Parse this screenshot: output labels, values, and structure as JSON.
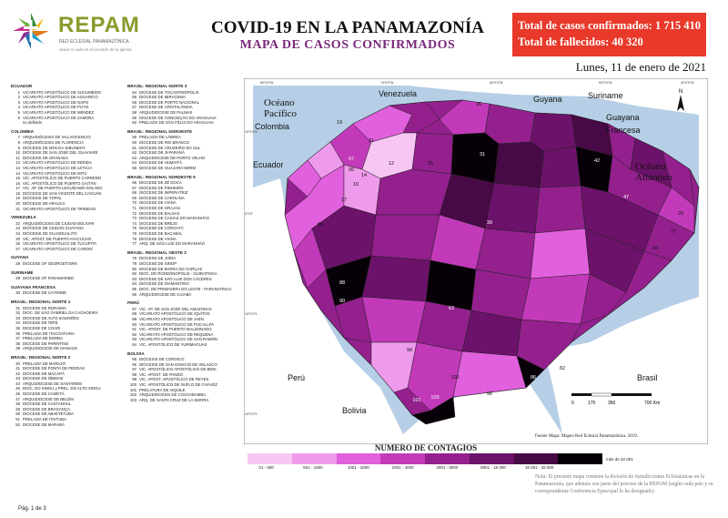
{
  "header": {
    "logo_name": "REPAM",
    "logo_sub": "RED ECLESIAL PANAMAZÓNICA",
    "logo_motto": "Jesús sí vida en el corazón de la Iglesia",
    "title": "COVID-19 EN LA PANAMAZONÍA",
    "subtitle": "MAPA DE CASOS CONFIRMADOS",
    "confirmed_label": "Total de casos confirmados:",
    "confirmed_value": "1 715 410",
    "deaths_label": "Total de fallecidos:",
    "deaths_value": "40 320",
    "date": "Lunes, 11 de enero de 2021"
  },
  "index_col1": [
    {
      "heading": "ECUADOR",
      "items": [
        [
          "1",
          "VICARIATO APOSTÓLICO DE SUCUMBÍOS"
        ],
        [
          "2",
          "VICARIATO APOSTÓLICO DE AGUARICO"
        ],
        [
          "3",
          "VICARIATO APOSTÓLICO DE NAPO"
        ],
        [
          "4",
          "VICARIATO APOSTÓLICO DE PUYO"
        ],
        [
          "5",
          "VICARIATO APOSTÓLICO DE MÉNDEZ"
        ],
        [
          "6",
          "VICARIATO APOSTÓLICO DE ZAMORA"
        ],
        [
          "",
          "no definido"
        ]
      ]
    },
    {
      "heading": "COLOMBIA",
      "items": [
        [
          "7",
          "ARQUIDIÓCESIS DE VILLAVICENCIO"
        ],
        [
          "8",
          "ARQUIDIÓCESIS DE FLORENCIA"
        ],
        [
          "9",
          "DIÓCESIS DE MOCOA-SIBUNDOY"
        ],
        [
          "10",
          "DIÓCESIS DE SAN JOSÉ DEL GUAVIARE"
        ],
        [
          "11",
          "DIÓCESIS DE GRANADA"
        ],
        [
          "12",
          "VICARIATO APOSTÓLICO DE INÍRIDA"
        ],
        [
          "13",
          "VICARIATO APOSTÓLICO DE LETICIA"
        ],
        [
          "14",
          "VICARIATO APOSTÓLICO DE MITÚ"
        ],
        [
          "15",
          "VIC. APOSTÓLICO DE PUERTO CARREÑO"
        ],
        [
          "16",
          "VIC. APOSTÓLICO DE PUERTO GAITÁN"
        ],
        [
          "17",
          "VIC. AP. DE PUERTO LEGUÍZAMO-SOLANO"
        ],
        [
          "18",
          "DIÓCESIS DE SAN VICENTE DEL CAGUÁN"
        ],
        [
          "19",
          "DIÓCESIS DE YOPAL"
        ],
        [
          "20",
          "DIÓCESIS DE ARAUCA"
        ],
        [
          "21",
          "VICARIATO APOSTÓLICO DE TRINIDAD"
        ]
      ]
    },
    {
      "heading": "VENEZUELA",
      "items": [
        [
          "22",
          "ARQUIDIÓCESIS DE CIUDAD BOLÍVAR"
        ],
        [
          "23",
          "DIÓCESIS DE CIUDAD GUAYANA"
        ],
        [
          "24",
          "DIÓCESIS DE GUASDUALITO"
        ],
        [
          "25",
          "VIC. APOST. DE PUERTO AYACUCHO"
        ],
        [
          "26",
          "VICARIATO APOSTÓLICO DE TUCUPITA"
        ],
        [
          "27",
          "VICARIATO APOSTÓLICO DE CARONÍ"
        ]
      ]
    },
    {
      "heading": "GUYANA",
      "items": [
        [
          "28",
          "DIOCESE OF GEORGETOWN"
        ]
      ]
    },
    {
      "heading": "SURINAME",
      "items": [
        [
          "29",
          "DIOCESE OF PARAMARIBO"
        ]
      ]
    },
    {
      "heading": "GUAYANA FRANCESA",
      "items": [
        [
          "30",
          "DIOCESE DE CAYENNE"
        ]
      ]
    },
    {
      "heading": "BRASIL: REGIONAL NORTE 1",
      "items": [
        [
          "31",
          "DIOCESE DE RORAIMA"
        ],
        [
          "32",
          "DIOC. DE SÃO GABRIEL DA CACHOEIRA"
        ],
        [
          "33",
          "DIOCESE DE ALTO SOLIMÕES"
        ],
        [
          "34",
          "DIOCESE DE TEFÉ"
        ],
        [
          "35",
          "DIOCESE DE COARI"
        ],
        [
          "36",
          "PRELAZIA DE ITACOATIARA"
        ],
        [
          "37",
          "PRELAZIA DE BORBA"
        ],
        [
          "38",
          "DIOCESE DE PARINTINS"
        ],
        [
          "39",
          "ARQUIDIOCESE DE MANAUS"
        ]
      ]
    },
    {
      "heading": "BRASIL: REGIONAL NORTE 2",
      "items": [
        [
          "40",
          "PRELAZIA DE MARAJÓ"
        ],
        [
          "41",
          "DIOCESE DE PONTA DE PEDRAS"
        ],
        [
          "42",
          "DIOCESE DE MACAPÁ"
        ],
        [
          "43",
          "DIOCESE DE ÓBIDOS"
        ],
        [
          "44",
          "ARQUIDIOCESE DE SANTARÉM"
        ],
        [
          "45",
          "DIOC. DO XINGU y PREL. DO ALTO XINGU"
        ],
        [
          "46",
          "DIOCESE DE CAMETÁ"
        ],
        [
          "47",
          "ARQUIDIOCESE DE BELÉM"
        ],
        [
          "48",
          "DIOCESE DE CASTANHAL"
        ],
        [
          "49",
          "DIOCESE DE BRAGANÇA"
        ],
        [
          "50",
          "DIOCESE DE ABAETETUBA"
        ],
        [
          "51",
          "PRELAZIA DE ITAITUBA"
        ],
        [
          "52",
          "DIOCESE DE MARABÁ"
        ]
      ]
    }
  ],
  "index_col2": [
    {
      "heading": "BRASIL: REGIONAL NORTE 3",
      "items": [
        [
          "54",
          "DIOCESE DE TOCANTINÓPOLIS"
        ],
        [
          "55",
          "DIOCESE DE MIRACEMA"
        ],
        [
          "56",
          "DIOCESE DE PORTO NACIONAL"
        ],
        [
          "57",
          "DIOCESE DE CRISTALÂNDIA"
        ],
        [
          "58",
          "ARQUIDIOCESE DE PALMAS"
        ],
        [
          "59",
          "DIOCESE DE CONCEIÇÃO DO ARAGUAIA"
        ],
        [
          "60",
          "PRELAZIA DE SÃO FÉLIX DO ARAGUAIA"
        ]
      ]
    },
    {
      "heading": "BRASIL: REGIONAL NOROESTE",
      "items": [
        [
          "58",
          "PRELAZIA DE LÁBREA"
        ],
        [
          "60",
          "DIOCESE DE RIO BRANCO"
        ],
        [
          "61",
          "DIOCESE DE CRUZEIRO DO SUL"
        ],
        [
          "62",
          "DIOCESE DE JI-PARANÁ"
        ],
        [
          "63",
          "ARQUIDIOCESE DE PORTO VELHO"
        ],
        [
          "64",
          "DIOCESE DE HUMAITÁ"
        ],
        [
          "65",
          "DIOCESE DE GUAJARÁ-MIRIM"
        ]
      ]
    },
    {
      "heading": "BRASIL: REGIONAL NORDESTE 5",
      "items": [
        [
          "66",
          "DIOCESE DE ZÉ DOCA"
        ],
        [
          "67",
          "DIOCESE DE PINHEIRO"
        ],
        [
          "68",
          "DIOCESE DE IMPERATRIZ"
        ],
        [
          "69",
          "DIOCESE DE CAROLINA"
        ],
        [
          "70",
          "DIOCESE DE VIANA"
        ],
        [
          "71",
          "DIOCESE DE GRAJAÚ"
        ],
        [
          "72",
          "DIOCESE DE BALSAS"
        ],
        [
          "73",
          "DIOCESE DE CAXIAS DO MARANHÃO"
        ],
        [
          "74",
          "DIOCESE DE BREJO"
        ],
        [
          "75",
          "DIOCESE DE COROATÁ"
        ],
        [
          "76",
          "DIOCESE DE BACABAL"
        ],
        [
          "76",
          "DIOCESE DE VIANA"
        ],
        [
          "77",
          "ARQ. DE SÃO LUIZ DO MARANHÃO"
        ]
      ]
    },
    {
      "heading": "BRASIL: REGIONAL OESTE 2",
      "items": [
        [
          "78",
          "DIOCESE DE JUÍNA"
        ],
        [
          "79",
          "DIOCESE DE SINOP"
        ],
        [
          "80",
          "DIOCESE DE BARRA DO GARÇAS"
        ],
        [
          "82",
          "DIOC. DE RONDONÓPOLIS - GUIRATINGA"
        ],
        [
          "83",
          "DIOCESE DE SÃO LUIZ DOS CÁCERES"
        ],
        [
          "84",
          "DIOCESE DE DIAMANTINO"
        ],
        [
          "85",
          "DIOC. DE PRIMAVERA DO LESTE - PARANATINGA"
        ],
        [
          "86",
          "ARQUIDIOCESE DE CUIABÁ"
        ]
      ]
    },
    {
      "heading": "PERÚ",
      "items": [
        [
          "87",
          "VIC. AP. DE SAN JOSÉ DEL AMAZONAS"
        ],
        [
          "88",
          "VICARIATO APOSTÓLICO DE IQUITOS"
        ],
        [
          "89",
          "VICARIATO APOSTÓLICO DE JAÉN"
        ],
        [
          "90",
          "VICARIATO APOSTÓLICO DE PUCALLPA"
        ],
        [
          "91",
          "VIC. APOST. DE PUERTO MALDONADO"
        ],
        [
          "92",
          "VICARIATO APOSTÓLICO DE REQUENA"
        ],
        [
          "93",
          "VICARIATO APOSTÓLICO DE SAN RAMÓN"
        ],
        [
          "94",
          "VIC. APOSTÓLICO DE YURIMAGUAS"
        ]
      ]
    },
    {
      "heading": "BOLIVIA",
      "items": [
        [
          "95",
          "DIÓCESIS DE COROICO"
        ],
        [
          "96",
          "DIÓCESIS DE SAN IGNACIO DE VELASCO"
        ],
        [
          "97",
          "VIC. APOSTÓLICO APOSTÓLICO DE BENI"
        ],
        [
          "98",
          "VIC. APOST. DE PANDO"
        ],
        [
          "99",
          "VIC. APOST. APOSTÓLICO DE REYES"
        ],
        [
          "100",
          "VIC. APOSTÓLICO DE ÑUFLO DE CHÁVEZ"
        ],
        [
          "101",
          "PRELATURA DE AIQUILE"
        ],
        [
          "102",
          "ARQUIDIÓCESIS DE COCHABAMBA"
        ],
        [
          "103",
          "ARQ. DE SANTA CRUZ DE LA SIERRA"
        ]
      ]
    }
  ],
  "page_number": "Pág. 1 de 3",
  "map": {
    "ocean_labels": [
      {
        "text": "Océano",
        "text2": "Pacífico"
      },
      {
        "text": "Océano",
        "text2": "Atlántico"
      }
    ],
    "country_labels": [
      "Venezuela",
      "Colombia",
      "Guyana",
      "Suriname",
      "Guayana",
      "Francesa",
      "Ecuador",
      "Perú",
      "Bolivia",
      "Brasil"
    ],
    "region_numbers": [
      "19",
      "21",
      "26",
      "07",
      "12",
      "25",
      "31",
      "42",
      "47",
      "39",
      "17",
      "10",
      "88",
      "90",
      "63",
      "99",
      "100",
      "103",
      "101",
      "96",
      "86",
      "05",
      "06",
      "14",
      "29",
      "69",
      "77",
      "82"
    ],
    "scale_labels": [
      "0",
      "175",
      "350",
      "700 Km"
    ],
    "grid_top": [
      "80°0'0\"W",
      "70°0'0\"W",
      "60°0'0\"W",
      "50°0'0\"W",
      "40°0'0\"W"
    ],
    "grid_left": [
      "10°0'0\"N",
      "0°0'0\"",
      "10°0'0\"S",
      "20°0'0\"S"
    ]
  },
  "legend": {
    "title": "NUMERO DE CONTAGIOS",
    "bins": [
      {
        "label": "01 - 500",
        "color": "#f7c6f3"
      },
      {
        "label": "501 - 1000",
        "color": "#ef9bec"
      },
      {
        "label": "1001 - 2000",
        "color": "#e160dd"
      },
      {
        "label": "2001 - 4000",
        "color": "#c23ab9"
      },
      {
        "label": "4001 - 8000",
        "color": "#94208e"
      },
      {
        "label": "8001 - 16 000",
        "color": "#6c126a"
      },
      {
        "label": "16 001 - 32 000",
        "color": "#470a46"
      },
      {
        "label": "más de 32 001",
        "color": "#080008"
      }
    ]
  },
  "source": "Fuente Mapa: Mapeo Red Eclesial Panamazónica. 2019.",
  "note": "Nota: El presente mapa contiene la división de Jurisdicciones Eclesiásticas en la Panamazonía, que además son parte del proceso de la REPAM (según cada país y su correspondiente Conferencia Episcopal lo ha designado)"
}
